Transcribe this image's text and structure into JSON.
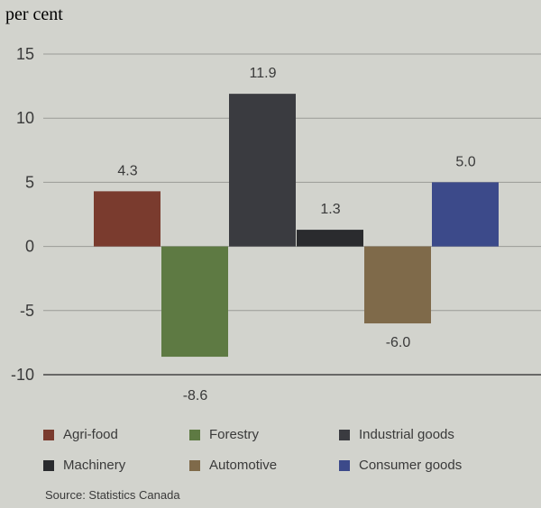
{
  "chart_data": {
    "type": "bar",
    "unit_label": "per cent",
    "categories": [
      "Agri-food",
      "Forestry",
      "Industrial goods",
      "Machinery",
      "Automotive",
      "Consumer goods"
    ],
    "values": [
      4.3,
      -8.6,
      11.9,
      1.3,
      -6.0,
      5.0
    ],
    "value_labels": [
      "4.3",
      "-8.6",
      "11.9",
      "1.3",
      "-6.0",
      "5.0"
    ],
    "colors": [
      "#7a3b2e",
      "#5e7a43",
      "#3a3b40",
      "#2a2b2e",
      "#7f6a4a",
      "#3c4a8a"
    ],
    "ylim": [
      -10,
      15
    ],
    "yticks": [
      15,
      10,
      5,
      0,
      -5,
      -10
    ],
    "ytick_labels": [
      "15",
      "10",
      "5",
      "0",
      "-5",
      "-10"
    ],
    "grid": true,
    "legend_position": "bottom",
    "source": "Source: Statistics Canada"
  }
}
